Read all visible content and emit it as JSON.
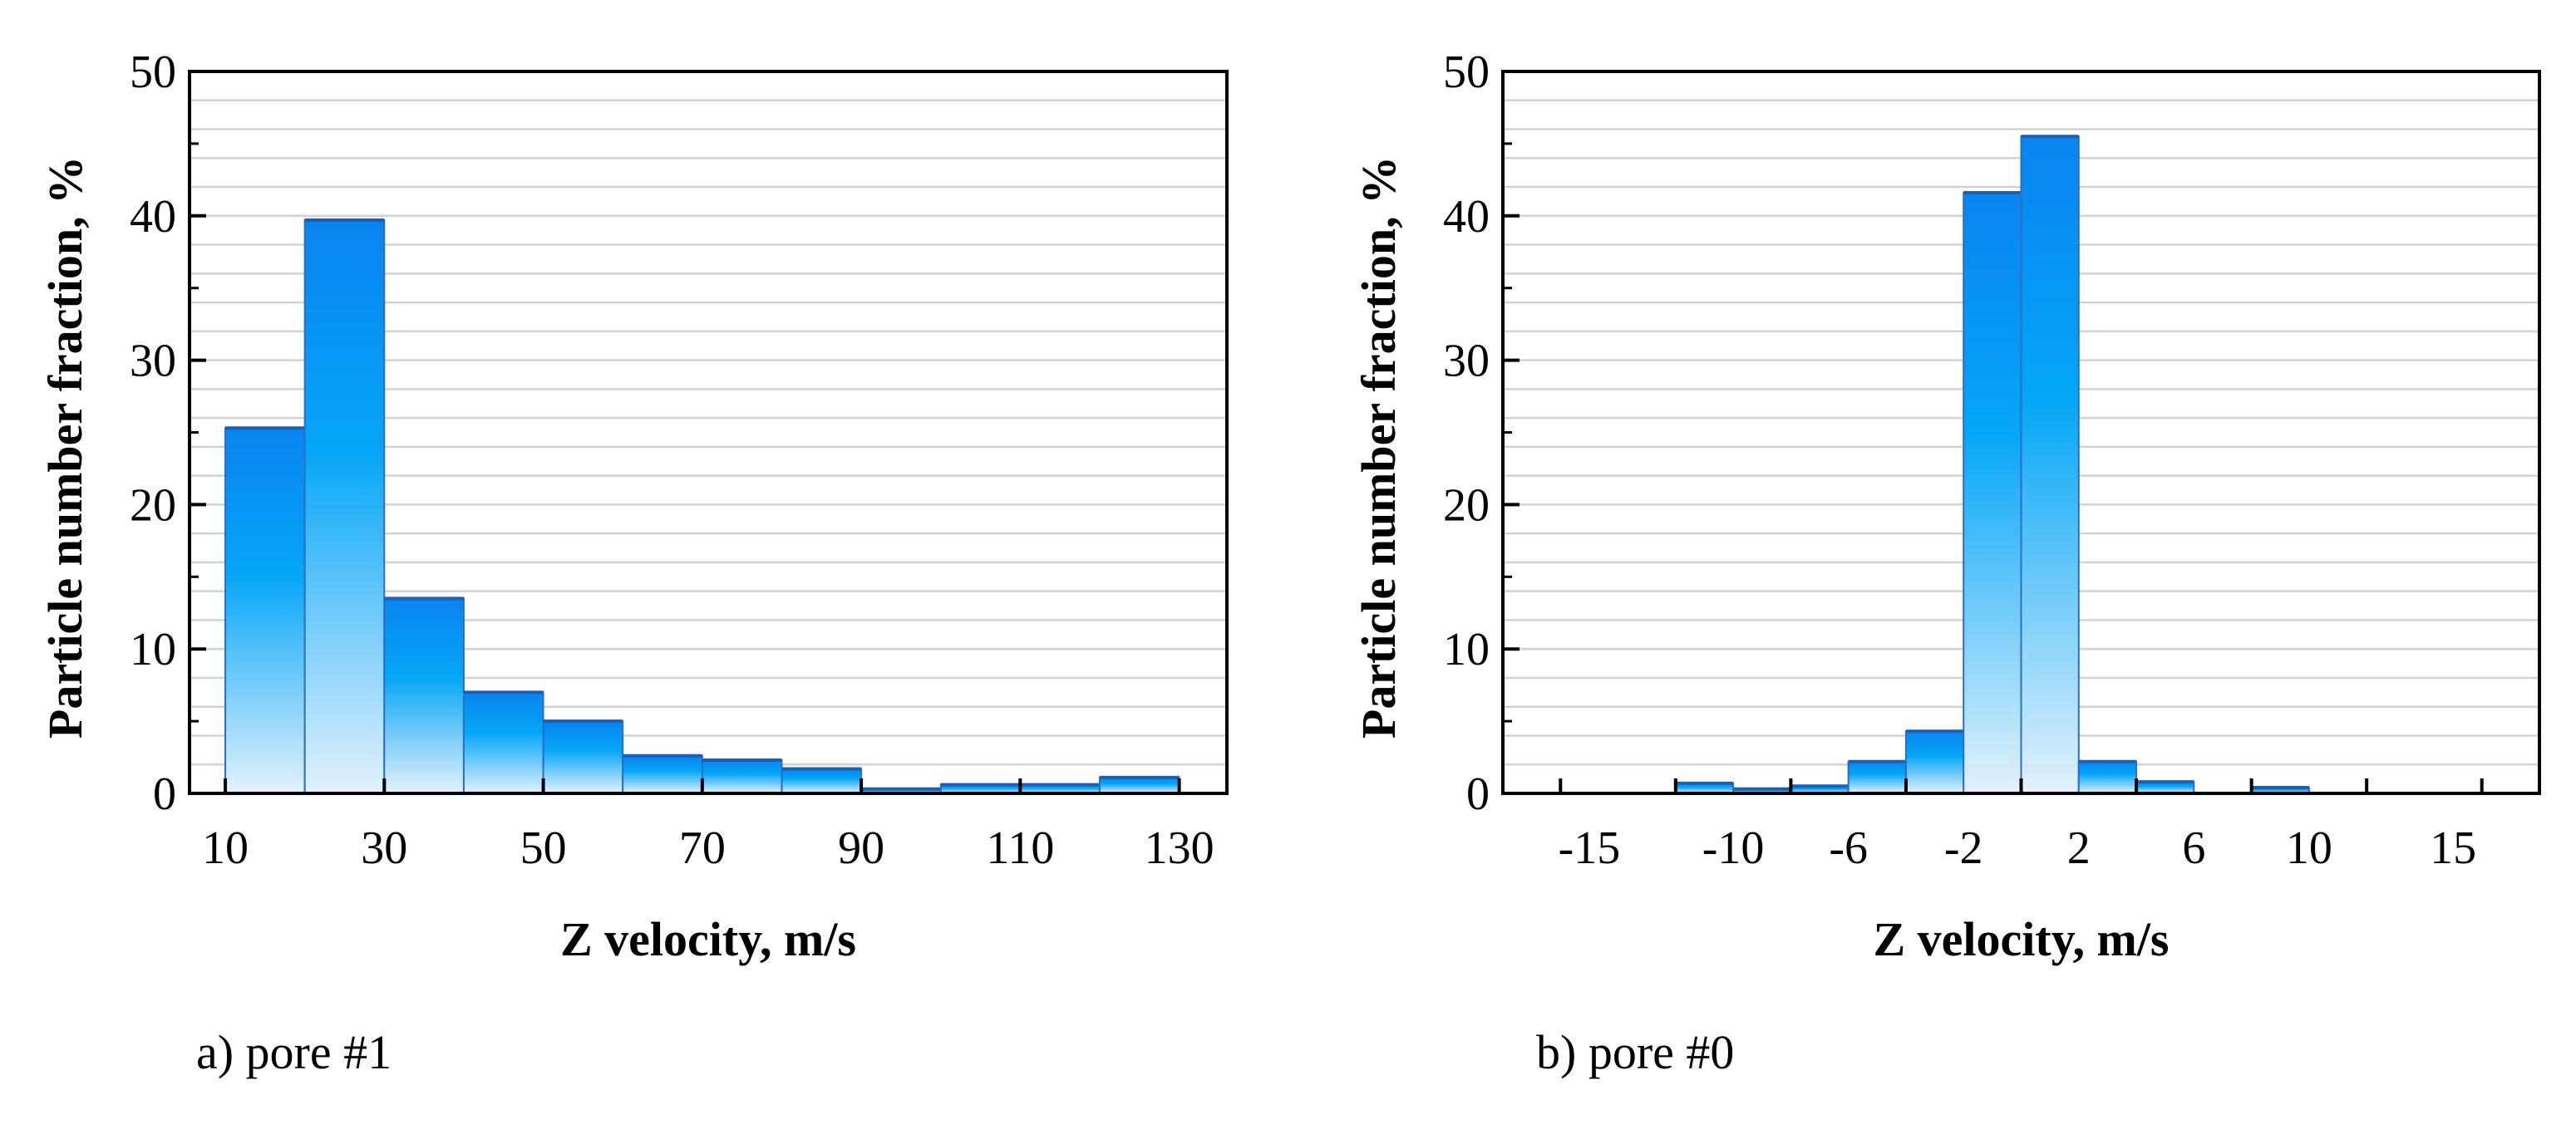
{
  "chart_data": [
    {
      "type": "bar",
      "caption": "a) pore #1",
      "xlabel": "Z velocity, m/s",
      "ylabel": "Particle number fraction, %",
      "xlim": [
        5.5,
        136
      ],
      "ylim": [
        0,
        50
      ],
      "y_ticks": [
        0,
        10,
        20,
        30,
        40,
        50
      ],
      "x_ticks": [
        10,
        30,
        50,
        70,
        90,
        110,
        130
      ],
      "bins": [
        {
          "x0": 10,
          "x1": 20,
          "value": 25.3
        },
        {
          "x0": 20,
          "x1": 30,
          "value": 39.7
        },
        {
          "x0": 30,
          "x1": 40,
          "value": 13.5
        },
        {
          "x0": 40,
          "x1": 50,
          "value": 7.0
        },
        {
          "x0": 50,
          "x1": 60,
          "value": 5.0
        },
        {
          "x0": 60,
          "x1": 70,
          "value": 2.6
        },
        {
          "x0": 70,
          "x1": 80,
          "value": 2.3
        },
        {
          "x0": 80,
          "x1": 90,
          "value": 1.7
        },
        {
          "x0": 90,
          "x1": 100,
          "value": 0.3
        },
        {
          "x0": 100,
          "x1": 110,
          "value": 0.6
        },
        {
          "x0": 110,
          "x1": 120,
          "value": 0.6
        },
        {
          "x0": 120,
          "x1": 130,
          "value": 1.1
        }
      ]
    },
    {
      "type": "bar",
      "caption": "b) pore #0",
      "xlabel": "Z velocity, m/s",
      "ylabel": "Particle number fraction, %",
      "xlim": [
        -18,
        18
      ],
      "ylim": [
        0,
        50
      ],
      "y_ticks": [
        0,
        10,
        20,
        30,
        40,
        50
      ],
      "x_ticks": [
        -15,
        -10,
        -6,
        -2,
        2,
        6,
        10,
        15
      ],
      "x_tick_marks": [
        -16,
        -12,
        -8,
        -4,
        0,
        4,
        8,
        12,
        16
      ],
      "bins": [
        {
          "x0": -12,
          "x1": -10,
          "value": 0.7
        },
        {
          "x0": -10,
          "x1": -8,
          "value": 0.3
        },
        {
          "x0": -8,
          "x1": -6,
          "value": 0.5
        },
        {
          "x0": -6,
          "x1": -4,
          "value": 2.2
        },
        {
          "x0": -4,
          "x1": -2,
          "value": 4.3
        },
        {
          "x0": -2,
          "x1": 0,
          "value": 41.6
        },
        {
          "x0": 0,
          "x1": 2,
          "value": 45.5
        },
        {
          "x0": 2,
          "x1": 4,
          "value": 2.2
        },
        {
          "x0": 4,
          "x1": 6,
          "value": 0.8
        },
        {
          "x0": 8,
          "x1": 10,
          "value": 0.4
        }
      ]
    }
  ],
  "style": {
    "bar_top_color": "#0a84f0",
    "bar_mid_color": "#04a6f7",
    "bar_bottom_color": "#e3f2fd",
    "bar_outline_color": "#2a6fc4",
    "grid_color": "#d2d2d2"
  }
}
